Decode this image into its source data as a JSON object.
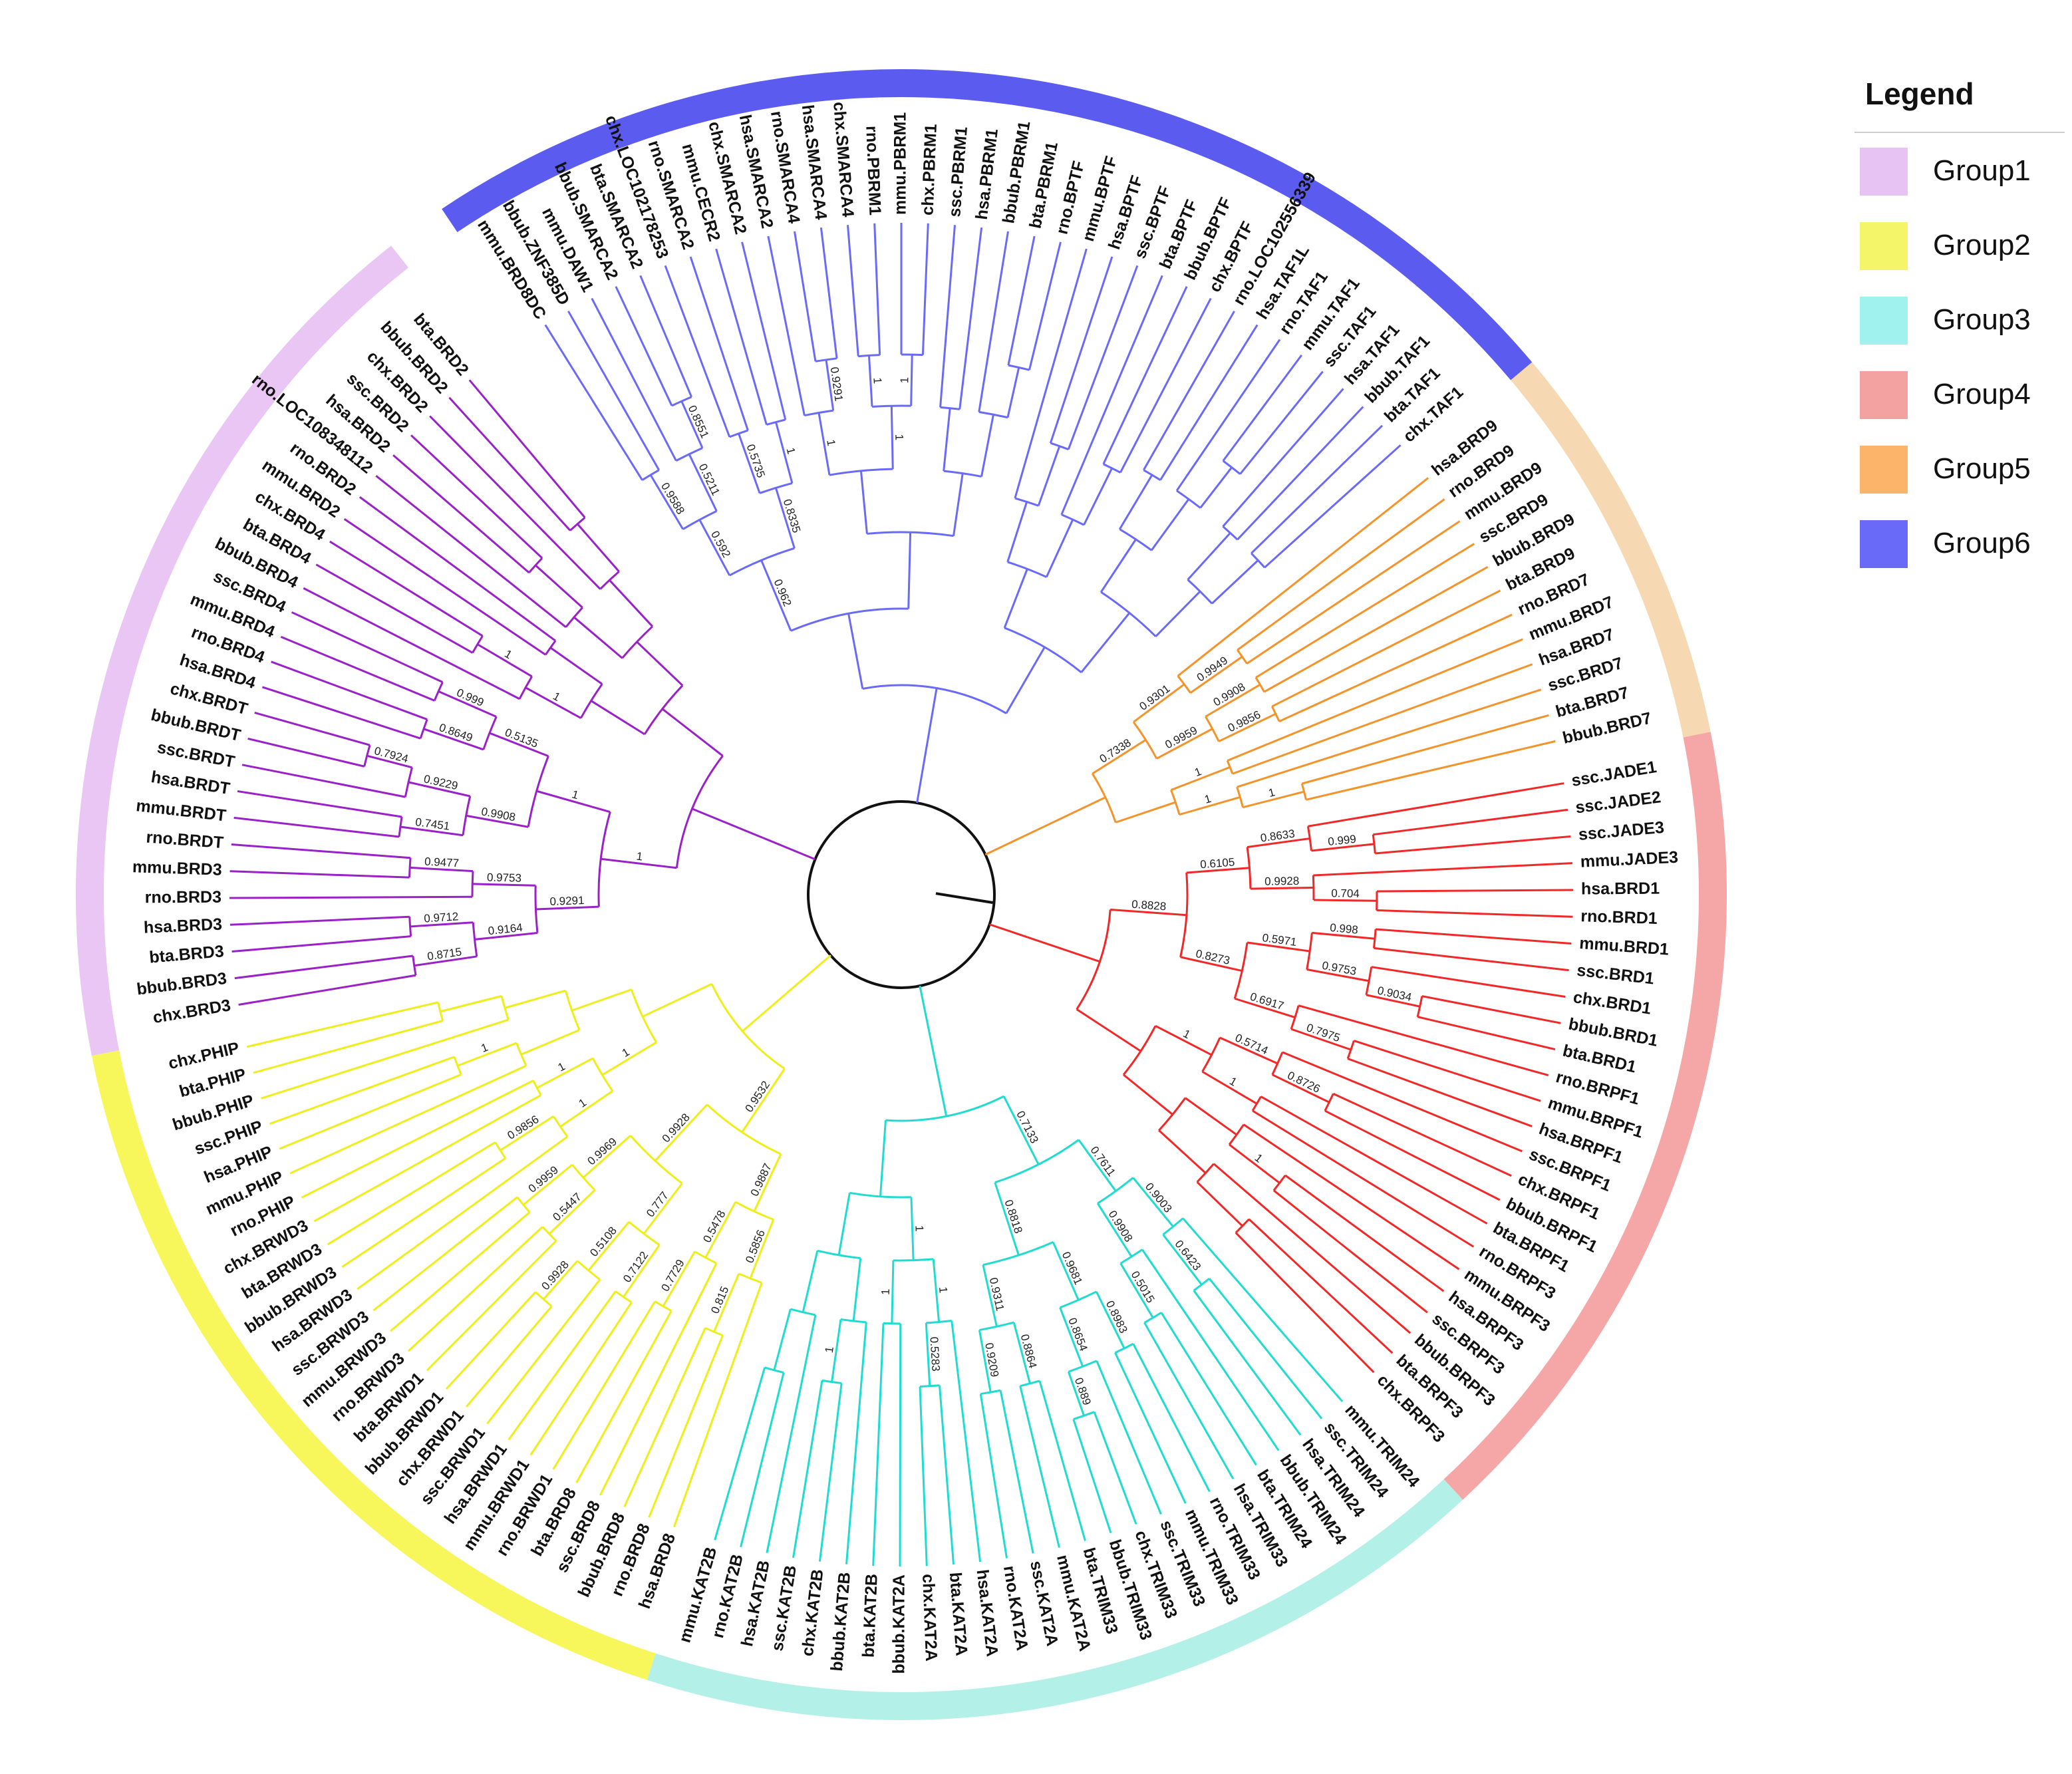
{
  "legend": {
    "title": "Legend",
    "groups": [
      {
        "name": "Group1",
        "color": "#e6c3f2"
      },
      {
        "name": "Group2",
        "color": "#f5f569"
      },
      {
        "name": "Group3",
        "color": "#9ff2ee"
      },
      {
        "name": "Group4",
        "color": "#f4a1a1"
      },
      {
        "name": "Group5",
        "color": "#fbb469"
      },
      {
        "name": "Group6",
        "color": "#6a6af8"
      }
    ]
  },
  "ring_segments": [
    {
      "group": "Group6",
      "color": "#5b5bf0",
      "from_label": "mmu.BRD8DC",
      "to_label": "chx.TAF1"
    },
    {
      "group": "Group5",
      "color": "#f6d9b3",
      "from_label": "hsa.BRD9",
      "to_label": "bbub.BRD7"
    },
    {
      "group": "Group4",
      "color": "#f5a7a7",
      "from_label": "ssc.JADE1",
      "to_label": "chx.BRPF3"
    },
    {
      "group": "Group3",
      "color": "#b3f0e8",
      "from_label": "mmu.TRIM24",
      "to_label": "mmu.KAT2B"
    },
    {
      "group": "Group2",
      "color": "#f7f75c",
      "from_label": "hsa.BRD8",
      "to_label": "chx.PHIP"
    },
    {
      "group": "Group1",
      "color": "#e9c6f4",
      "from_label": "chx.BRD3",
      "to_label": "bta.BRD2"
    }
  ],
  "branch_colors": {
    "Group1": "#9a20c8",
    "Group2": "#eeee1a",
    "Group3": "#20dcd0",
    "Group4": "#f02828",
    "Group5": "#f4932a",
    "Group6": "#6a6af8",
    "root": "#111111"
  },
  "groups": [
    {
      "name": "Group6",
      "leaves": [
        "mmu.BRD8DC",
        "bbub.ZNF385D",
        "mmu.DAW1",
        "bbub.SMARCA2",
        "bta.SMARCA2",
        "chx.LOC102178253",
        "rno.SMARCA2",
        "mmu.CECR2",
        "chx.SMARCA2",
        "hsa.SMARCA2",
        "rno.SMARCA4",
        "hsa.SMARCA4",
        "chx.SMARCA4",
        "rno.PBRM1",
        "mmu.PBRM1",
        "chx.PBRM1",
        "ssc.PBRM1",
        "hsa.PBRM1",
        "bbub.PBRM1",
        "bta.PBRM1",
        "rno.BPTF",
        "mmu.BPTF",
        "hsa.BPTF",
        "ssc.BPTF",
        "bta.BPTF",
        "bbub.BPTF",
        "chx.BPTF",
        "rno.LOC102556339",
        "hsa.TAF1L",
        "rno.TAF1",
        "mmu.TAF1",
        "ssc.TAF1",
        "hsa.TAF1",
        "bbub.TAF1",
        "bta.TAF1",
        "chx.TAF1"
      ]
    },
    {
      "name": "Group5",
      "leaves": [
        "hsa.BRD9",
        "rno.BRD9",
        "mmu.BRD9",
        "ssc.BRD9",
        "bbub.BRD9",
        "bta.BRD9",
        "rno.BRD7",
        "mmu.BRD7",
        "hsa.BRD7",
        "ssc.BRD7",
        "bta.BRD7",
        "bbub.BRD7"
      ]
    },
    {
      "name": "Group4",
      "leaves": [
        "ssc.JADE1",
        "ssc.JADE2",
        "ssc.JADE3",
        "mmu.JADE3",
        "hsa.BRD1",
        "rno.BRD1",
        "mmu.BRD1",
        "ssc.BRD1",
        "chx.BRD1",
        "bbub.BRD1",
        "bta.BRD1",
        "rno.BRPF1",
        "mmu.BRPF1",
        "hsa.BRPF1",
        "ssc.BRPF1",
        "chx.BRPF1",
        "bbub.BRPF1",
        "bta.BRPF1",
        "rno.BRPF3",
        "mmu.BRPF3",
        "hsa.BRPF3",
        "ssc.BRPF3",
        "bbub.BRPF3",
        "bta.BRPF3",
        "chx.BRPF3"
      ]
    },
    {
      "name": "Group3",
      "leaves": [
        "mmu.TRIM24",
        "ssc.TRIM24",
        "hsa.TRIM24",
        "bbub.TRIM24",
        "bta.TRIM24",
        "hsa.TRIM33",
        "rno.TRIM33",
        "mmu.TRIM33",
        "ssc.TRIM33",
        "chx.TRIM33",
        "bbub.TRIM33",
        "bta.TRIM33",
        "mmu.KAT2A",
        "ssc.KAT2A",
        "rno.KAT2A",
        "hsa.KAT2A",
        "bta.KAT2A",
        "chx.KAT2A",
        "bbub.KAT2A",
        "bta.KAT2B",
        "bbub.KAT2B",
        "chx.KAT2B",
        "ssc.KAT2B",
        "hsa.KAT2B",
        "rno.KAT2B",
        "mmu.KAT2B"
      ]
    },
    {
      "name": "Group2",
      "leaves": [
        "hsa.BRD8",
        "rno.BRD8",
        "bbub.BRD8",
        "ssc.BRD8",
        "bta.BRD8",
        "rno.BRWD1",
        "mmu.BRWD1",
        "hsa.BRWD1",
        "ssc.BRWD1",
        "chx.BRWD1",
        "bbub.BRWD1",
        "bta.BRWD1",
        "rno.BRWD3",
        "mmu.BRWD3",
        "ssc.BRWD3",
        "hsa.BRWD3",
        "bbub.BRWD3",
        "bta.BRWD3",
        "chx.BRWD3",
        "rno.PHIP",
        "mmu.PHIP",
        "hsa.PHIP",
        "ssc.PHIP",
        "bbub.PHIP",
        "bta.PHIP",
        "chx.PHIP"
      ]
    },
    {
      "name": "Group1",
      "leaves": [
        "chx.BRD3",
        "bbub.BRD3",
        "bta.BRD3",
        "hsa.BRD3",
        "rno.BRD3",
        "mmu.BRD3",
        "rno.BRDT",
        "mmu.BRDT",
        "hsa.BRDT",
        "ssc.BRDT",
        "bbub.BRDT",
        "chx.BRDT",
        "hsa.BRD4",
        "rno.BRD4",
        "mmu.BRD4",
        "ssc.BRD4",
        "bbub.BRD4",
        "bta.BRD4",
        "chx.BRD4",
        "mmu.BRD2",
        "rno.BRD2",
        "rno.LOC108348112",
        "hsa.BRD2",
        "ssc.BRD2",
        "chx.BRD2",
        "bbub.BRD2",
        "bta.BRD2"
      ]
    }
  ],
  "support_values": {
    "Group6": [
      "0.9588",
      "0.8551",
      "0.5211",
      "0.592",
      "0.5735",
      "1",
      "0.8335",
      "0.962",
      "0.9291",
      "1",
      "1",
      "1",
      "1"
    ],
    "Group5": [
      "0.9949",
      "0.9301",
      "0.9908",
      "0.9856",
      "0.9959",
      "0.7338",
      "1",
      "1",
      "1"
    ],
    "Group4": [
      "0.999",
      "0.8633",
      "0.704",
      "0.9928",
      "0.6105",
      "0.998",
      "0.9034",
      "0.9753",
      "0.5971",
      "0.7975",
      "0.6917",
      "0.8273",
      "0.8828",
      "0.8726",
      "0.5714",
      "1",
      "1",
      "1"
    ],
    "Group3": [
      "0.6423",
      "0.9003",
      "0.5015",
      "0.9908",
      "0.7611",
      "0.8983",
      "0.889",
      "0.8654",
      "0.9681",
      "0.8864",
      "0.9209",
      "0.9311",
      "0.8818",
      "0.7133",
      "0.5283",
      "1",
      "1",
      "1",
      "1"
    ],
    "Group2": [
      "0.815",
      "0.5856",
      "0.7729",
      "0.5478",
      "0.9887",
      "0.7122",
      "0.9928",
      "0.5108",
      "0.777",
      "0.5447",
      "0.9959",
      "0.9969",
      "0.9928",
      "0.9532",
      "0.9856",
      "1",
      "1",
      "1",
      "1"
    ],
    "Group1": [
      "0.8715",
      "0.9712",
      "0.9164",
      "0.9477",
      "0.9753",
      "0.9291",
      "0.7451",
      "0.7924",
      "0.9229",
      "0.9908",
      "0.8649",
      "0.999",
      "0.5135",
      "1",
      "1",
      "1",
      "1"
    ]
  }
}
